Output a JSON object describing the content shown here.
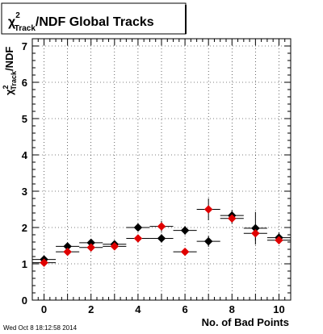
{
  "chart_data": {
    "type": "scatter",
    "title_main": "χ",
    "title_sup": "2",
    "title_sub": "Track",
    "title_rest": "/NDF  Global Tracks",
    "ylabel_main": "χ",
    "ylabel_sup": "2",
    "ylabel_sub": "Track",
    "ylabel_rest": "/NDF",
    "xlabel": "No. of Bad Points",
    "xlim": [
      -0.5,
      10.5
    ],
    "ylim": [
      0,
      7.2
    ],
    "xticks": [
      0,
      2,
      4,
      6,
      8,
      10
    ],
    "yticks": [
      0,
      1,
      2,
      3,
      4,
      5,
      6,
      7
    ],
    "grid": true,
    "series": [
      {
        "color": "#000000",
        "points": [
          {
            "x": 0,
            "y": 1.12,
            "yerr": 0.05
          },
          {
            "x": 1,
            "y": 1.48,
            "yerr": 0.05
          },
          {
            "x": 2,
            "y": 1.58,
            "yerr": 0.06
          },
          {
            "x": 3,
            "y": 1.54,
            "yerr": 0.06
          },
          {
            "x": 4,
            "y": 2.0,
            "yerr": 0.1
          },
          {
            "x": 5,
            "y": 1.7,
            "yerr": 0.12
          },
          {
            "x": 6,
            "y": 1.92,
            "yerr": 0.12
          },
          {
            "x": 7,
            "y": 1.62,
            "yerr": 0.15
          },
          {
            "x": 8,
            "y": 2.33,
            "yerr": 0.15
          },
          {
            "x": 9,
            "y": 1.98,
            "yerr": 0.45
          },
          {
            "x": 10,
            "y": 1.72,
            "yerr": 0.15
          }
        ]
      },
      {
        "color": "#e00000",
        "points": [
          {
            "x": 0,
            "y": 1.03,
            "yerr": 0.05
          },
          {
            "x": 1,
            "y": 1.33,
            "yerr": 0.05
          },
          {
            "x": 2,
            "y": 1.45,
            "yerr": 0.05
          },
          {
            "x": 3,
            "y": 1.48,
            "yerr": 0.06
          },
          {
            "x": 4,
            "y": 1.7,
            "yerr": 0.1
          },
          {
            "x": 5,
            "y": 2.03,
            "yerr": 0.15
          },
          {
            "x": 6,
            "y": 1.33,
            "yerr": 0.08
          },
          {
            "x": 7,
            "y": 2.5,
            "yerr": 0.3
          },
          {
            "x": 8,
            "y": 2.25,
            "yerr": 0.15
          },
          {
            "x": 9,
            "y": 1.84,
            "yerr": 0.2
          },
          {
            "x": 10,
            "y": 1.65,
            "yerr": 0.1
          }
        ]
      }
    ]
  },
  "timestamp": "Wed Oct  8 18:12:58 2014"
}
